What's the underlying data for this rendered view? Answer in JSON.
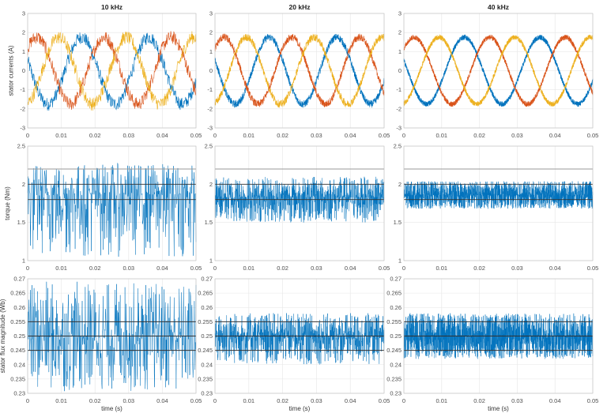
{
  "colors": {
    "blue": "#0072BD",
    "red": "#D95319",
    "yellow": "#EDB120",
    "reference": "#333333",
    "reference_light": "#999999",
    "grid": "#e6e6e6"
  },
  "columns": [
    "10 kHz",
    "20 kHz",
    "40 kHz"
  ],
  "chart_data": [
    {
      "type": "line",
      "title": "10 kHz",
      "ylabel": "stator currents (A)",
      "xlabel": "",
      "xlim": [
        0,
        0.05
      ],
      "ylim": [
        -3,
        3
      ],
      "xticks": [
        "0",
        "0.01",
        "0.02",
        "0.03",
        "0.04",
        "0.05"
      ],
      "yticks": [
        "-3",
        "-2",
        "-1",
        "0",
        "1",
        "2",
        "3"
      ],
      "grid": true,
      "signal": {
        "model": "three-phase sinusoid",
        "frequency_hz": 50,
        "amplitude": 1.75,
        "peak_times": {
          "blue": 0.016,
          "red": 0.0027,
          "yellow": 0.0093
        },
        "noise": 0.35,
        "samples_per_s": 10000
      }
    },
    {
      "type": "line",
      "title": "20 kHz",
      "ylabel": "",
      "xlabel": "",
      "xlim": [
        0,
        0.05
      ],
      "ylim": [
        -3,
        3
      ],
      "xticks": [
        "0",
        "0.01",
        "0.02",
        "0.03",
        "0.04",
        "0.05"
      ],
      "yticks": [
        "-3",
        "-2",
        "-1",
        "0",
        "1",
        "2",
        "3"
      ],
      "grid": true,
      "signal": {
        "model": "three-phase sinusoid",
        "frequency_hz": 50,
        "amplitude": 1.75,
        "peak_times": {
          "blue": 0.016,
          "red": 0.0027,
          "yellow": 0.0093
        },
        "noise": 0.2,
        "samples_per_s": 20000
      }
    },
    {
      "type": "line",
      "title": "40 kHz",
      "ylabel": "",
      "xlabel": "",
      "xlim": [
        0,
        0.05
      ],
      "ylim": [
        -3,
        3
      ],
      "xticks": [
        "0",
        "0.01",
        "0.02",
        "0.03",
        "0.04",
        "0.05"
      ],
      "yticks": [
        "-3",
        "-2",
        "-1",
        "0",
        "1",
        "2",
        "3"
      ],
      "grid": true,
      "signal": {
        "model": "three-phase sinusoid",
        "frequency_hz": 50,
        "amplitude": 1.75,
        "peak_times": {
          "blue": 0.016,
          "red": 0.0027,
          "yellow": 0.0093
        },
        "noise": 0.14,
        "samples_per_s": 40000
      }
    },
    {
      "type": "line",
      "title": "",
      "ylabel": "torque (Nm)",
      "xlabel": "",
      "xlim": [
        0,
        0.05
      ],
      "ylim": [
        1,
        2.5
      ],
      "xticks": [
        "0",
        "0.01",
        "0.02",
        "0.03",
        "0.04",
        "0.05"
      ],
      "yticks": [
        "1",
        "1.5",
        "2",
        "2.5"
      ],
      "grid": true,
      "reference_lines": [
        2.2,
        2.0,
        1.8
      ],
      "signal": {
        "model": "noisy",
        "mean": 1.87,
        "min": 1.05,
        "max": 2.28,
        "samples_per_s": 10000
      }
    },
    {
      "type": "line",
      "title": "",
      "ylabel": "",
      "xlabel": "",
      "xlim": [
        0,
        0.05
      ],
      "ylim": [
        1,
        2.5
      ],
      "xticks": [
        "0",
        "0.01",
        "0.02",
        "0.03",
        "0.04",
        "0.05"
      ],
      "yticks": [
        "1",
        "1.5",
        "2",
        "2.5"
      ],
      "grid": true,
      "reference_lines": [
        2.2,
        2.0,
        1.8
      ],
      "signal": {
        "model": "noisy",
        "mean": 1.83,
        "min": 1.5,
        "max": 2.1,
        "samples_per_s": 20000
      }
    },
    {
      "type": "line",
      "title": "",
      "ylabel": "",
      "xlabel": "",
      "xlim": [
        0,
        0.05
      ],
      "ylim": [
        1,
        2.5
      ],
      "xticks": [
        "0",
        "0.01",
        "0.02",
        "0.03",
        "0.04",
        "0.05"
      ],
      "yticks": [
        "1",
        "1.5",
        "2",
        "2.5"
      ],
      "grid": true,
      "reference_lines": [
        2.2,
        2.0,
        1.8
      ],
      "signal": {
        "model": "noisy",
        "mean": 1.86,
        "min": 1.68,
        "max": 2.04,
        "samples_per_s": 40000
      }
    },
    {
      "type": "line",
      "title": "",
      "ylabel": "stator flux magnitude (Wb)",
      "xlabel": "time (s)",
      "xlim": [
        0,
        0.05
      ],
      "ylim": [
        0.23,
        0.27
      ],
      "xticks": [
        "0",
        "0.01",
        "0.02",
        "0.03",
        "0.04",
        "0.05"
      ],
      "yticks": [
        "0.23",
        "0.235",
        "0.24",
        "0.245",
        "0.25",
        "0.255",
        "0.26",
        "0.265",
        "0.27"
      ],
      "grid": true,
      "reference_lines": [
        0.255,
        0.25,
        0.245
      ],
      "signal": {
        "model": "noisy",
        "mean": 0.25,
        "min": 0.2305,
        "max": 0.269,
        "samples_per_s": 10000
      }
    },
    {
      "type": "line",
      "title": "",
      "ylabel": "",
      "xlabel": "time (s)",
      "xlim": [
        0,
        0.05
      ],
      "ylim": [
        0.23,
        0.27
      ],
      "xticks": [
        "0",
        "0.01",
        "0.02",
        "0.03",
        "0.04",
        "0.05"
      ],
      "yticks": [
        "0.23",
        "0.235",
        "0.24",
        "0.245",
        "0.25",
        "0.255",
        "0.26",
        "0.265",
        "0.27"
      ],
      "grid": true,
      "reference_lines": [
        0.255,
        0.25,
        0.245
      ],
      "signal": {
        "model": "noisy",
        "mean": 0.25,
        "min": 0.24,
        "max": 0.258,
        "samples_per_s": 20000
      }
    },
    {
      "type": "line",
      "title": "",
      "ylabel": "",
      "xlabel": "time (s)",
      "xlim": [
        0,
        0.05
      ],
      "ylim": [
        0.23,
        0.27
      ],
      "xticks": [
        "0",
        "0.01",
        "0.02",
        "0.03",
        "0.04",
        "0.05"
      ],
      "yticks": [
        "0.23",
        "0.235",
        "0.24",
        "0.245",
        "0.25",
        "0.255",
        "0.26",
        "0.265",
        "0.27"
      ],
      "grid": true,
      "reference_lines": [
        0.255,
        0.25,
        0.245
      ],
      "signal": {
        "model": "noisy",
        "mean": 0.25,
        "min": 0.242,
        "max": 0.258,
        "samples_per_s": 40000
      }
    }
  ]
}
